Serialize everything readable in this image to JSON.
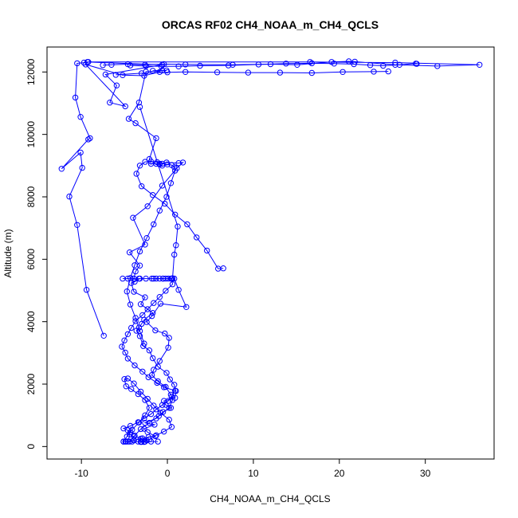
{
  "chart_data": {
    "type": "line",
    "title": "ORCAS RF02 CH4_NOAA_m_CH4_QCLS",
    "xlabel": "CH4_NOAA_m_CH4_QCLS",
    "ylabel": "Altitude (m)",
    "xlim": [
      -14,
      38
    ],
    "ylim": [
      -400,
      12800
    ],
    "x_ticks": [
      -10,
      0,
      10,
      20,
      30
    ],
    "y_ticks": [
      0,
      2000,
      4000,
      6000,
      8000,
      10000,
      12000
    ],
    "x_tick_labels": [
      "-10",
      "0",
      "10",
      "20",
      "30"
    ],
    "y_tick_labels": [
      "0",
      "2000",
      "4000",
      "6000",
      "8000",
      "10000",
      "12000"
    ],
    "series_color": "#0000ff",
    "marker": "open-circle",
    "series": [
      {
        "x": [
          -7.4,
          -9.4,
          -10.5,
          -11.4,
          -9.9,
          -10.1,
          -12.3,
          -9.2,
          -9.0,
          -10.1,
          -10.7,
          -10.5,
          -9.7,
          -9.3,
          -0.6,
          -7.2,
          -5.9,
          -6.7,
          -4.9,
          -9.5,
          -5.2,
          -2.7,
          -0.9,
          -1.7,
          -0.6,
          -0.1,
          -2.5,
          -3.3,
          -4.5,
          -3.7,
          -1.3,
          -2.1,
          -1.9,
          -1.3,
          -0.9,
          -0.6,
          -0.9,
          -0.1,
          1.3,
          1.8,
          1.1,
          -0.6,
          -2.3,
          -4.0,
          -2.6,
          -4.4,
          -3.2,
          -3.7,
          -3.9
        ],
        "y": [
          3550,
          5020,
          7100,
          8010,
          8930,
          9420,
          8900,
          9840,
          9880,
          10560,
          11180,
          12280,
          12300,
          12320,
          12230,
          11920,
          11570,
          11020,
          10900,
          12240,
          11900,
          11880,
          12000,
          12040,
          12050,
          12050,
          12010,
          11020,
          10500,
          10360,
          9880,
          9210,
          9060,
          9060,
          9040,
          9000,
          9060,
          9100,
          9080,
          9100,
          8920,
          8360,
          7700,
          7330,
          6470,
          6220,
          5800,
          5610,
          5380
        ]
      },
      {
        "x": [
          -3.2,
          -3.8,
          -4.2,
          -3.9,
          -2.6,
          -3.1,
          -1.7,
          -2.7,
          -3.0,
          -3.3,
          -3.6,
          -3.2,
          -2.8,
          -2.1,
          -1.7,
          -1.1,
          -0.1,
          0.3,
          0.8,
          1.0,
          0.9,
          -0.4,
          -0.2,
          0.4,
          -0.5,
          -1.3,
          -2.6,
          -1.5,
          -2.7,
          -2.3,
          -1.4,
          -2.1,
          -3.0,
          -3.1,
          -2.7,
          -2.4,
          -2.9,
          -3.9,
          -4.4,
          -4.3,
          -4.6,
          -5.1,
          -4.3,
          -3.4,
          -2.7,
          -1.9,
          -1.3,
          -0.6,
          0.1,
          0.5,
          0.9,
          -0.4,
          -1.2,
          -2.2,
          -2.9,
          -3.8,
          -4.6,
          -4.9,
          -5.3,
          -5.0,
          -4.6,
          -4.2,
          -3.7,
          -2.9,
          -2.3,
          -1.6,
          -0.9,
          -0.2,
          0.6,
          0.5,
          -0.5,
          -1.6,
          -2.5,
          -3.3,
          -3.9,
          -4.6,
          -5.2
        ],
        "y": [
          5380,
          5280,
          5240,
          4960,
          4780,
          4560,
          4280,
          4060,
          3930,
          3810,
          3710,
          3540,
          3220,
          3080,
          2830,
          2560,
          2360,
          2150,
          1980,
          1780,
          1560,
          1460,
          1340,
          1240,
          1110,
          900,
          760,
          700,
          570,
          460,
          330,
          230,
          150,
          150,
          150,
          200,
          260,
          320,
          390,
          460,
          520,
          580,
          660,
          780,
          900,
          1040,
          1190,
          1330,
          1460,
          1600,
          1790,
          1900,
          2040,
          2220,
          2400,
          2600,
          2820,
          3010,
          3200,
          3400,
          3600,
          3800,
          4020,
          4210,
          4400,
          4600,
          4790,
          4990,
          5200,
          5380,
          5380,
          5380,
          5380,
          5380,
          5380,
          5380,
          5380
        ]
      },
      {
        "x": [
          0.8,
          1.3,
          2.2,
          -0.8,
          -1.8,
          -2.4,
          -1.4,
          -0.3,
          0.2,
          0.1,
          -0.9,
          -1.6,
          -1.8,
          -1.1,
          -0.2,
          0.4,
          0.6,
          0.2,
          -1.0,
          -2.1,
          -3.1,
          -3.8,
          -4.4,
          -4.9,
          -5.1,
          -4.7,
          -4.1,
          -3.3,
          -2.6,
          -2.1,
          -2.6,
          -3.4,
          -4.2,
          -4.8,
          -5.0,
          -4.6,
          -3.9,
          -3.1,
          -2.3,
          -1.6,
          -0.8,
          0.2,
          0.5,
          -0.4,
          -1.3,
          -2.2,
          -3.1,
          -3.9,
          -4.6,
          -5.1,
          -4.8,
          -4.1,
          -3.4,
          -2.6,
          -1.9,
          -1.1
        ],
        "y": [
          5380,
          5020,
          4470,
          4580,
          4180,
          3990,
          3720,
          3620,
          3480,
          3170,
          2740,
          2460,
          2290,
          2090,
          1910,
          1660,
          1490,
          1240,
          980,
          760,
          560,
          350,
          160,
          160,
          160,
          320,
          540,
          770,
          1000,
          1240,
          1490,
          1680,
          1840,
          1930,
          2160,
          2180,
          2020,
          1760,
          1530,
          1310,
          1080,
          860,
          630,
          480,
          360,
          300,
          250,
          200,
          160,
          160,
          160,
          160,
          160,
          160,
          160,
          160
        ]
      },
      {
        "x": [
          6.5,
          5.9,
          4.6,
          3.4,
          2.3,
          0.9,
          -0.3,
          -1.7,
          -3.0,
          -3.6,
          -3.2,
          -2.6,
          -1.9,
          -1.2,
          -0.6,
          0.0,
          0.5,
          0.8,
          0.9,
          0.4,
          -0.1,
          -0.9,
          -1.6,
          -2.4,
          -3.2,
          -3.8,
          -4.3,
          -4.7,
          -4.3,
          -3.7,
          -3.2,
          -2.7
        ],
        "y": [
          5710,
          5700,
          6280,
          6700,
          7120,
          7430,
          7780,
          8060,
          8340,
          8740,
          9000,
          9120,
          9130,
          9110,
          9060,
          9040,
          9020,
          8950,
          8840,
          8440,
          8000,
          7560,
          7120,
          6680,
          6250,
          5810,
          5400,
          4970,
          4550,
          4120,
          3700,
          3300
        ]
      },
      {
        "x": [
          -3.2,
          1.2,
          1.0,
          0.8,
          0.6,
          0.4,
          0.1,
          -0.2,
          -0.5,
          -0.9,
          -1.3,
          -1.8
        ],
        "y": [
          10880,
          7050,
          6450,
          6150,
          5390,
          5380,
          5380,
          5380,
          5380,
          5380,
          5380,
          5380
        ]
      },
      {
        "x": [
          -9.2,
          16.6,
          26.5,
          36.3,
          31.4,
          26.5,
          21.8,
          21.1,
          19.1,
          15.1,
          12.0,
          7.6,
          2.1,
          -0.4,
          -2.6,
          -4.6,
          -6.5,
          -7.5
        ],
        "y": [
          12320,
          12320,
          12300,
          12230,
          12190,
          12230,
          12330,
          12340,
          12320,
          12230,
          12250,
          12230,
          12240,
          12250,
          12230,
          12250,
          12230,
          12220
        ]
      },
      {
        "x": [
          -4.3,
          -2.5,
          -0.7,
          1.3,
          3.8,
          7.1,
          10.6,
          13.8,
          16.8,
          19.4,
          21.7,
          23.6,
          25.1,
          27.0,
          28.9,
          29.0
        ],
        "y": [
          12210,
          12190,
          12180,
          12180,
          12200,
          12210,
          12240,
          12270,
          12280,
          12270,
          12250,
          12220,
          12200,
          12230,
          12270,
          12260
        ]
      },
      {
        "x": [
          -6.0,
          -3.0,
          0.0,
          2.1,
          5.8,
          9.4,
          13.1,
          16.8,
          20.4,
          24.0,
          25.7
        ],
        "y": [
          11910,
          11960,
          11990,
          12000,
          11990,
          11980,
          11980,
          11970,
          12000,
          12010,
          12020
        ]
      }
    ]
  }
}
